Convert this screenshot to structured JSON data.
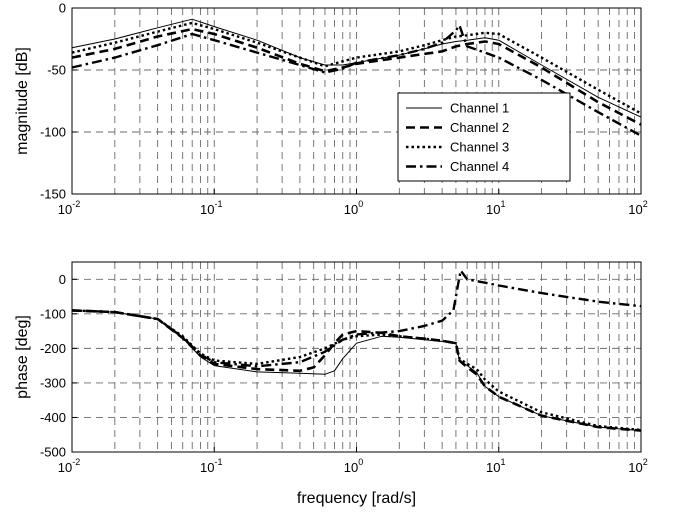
{
  "chart_data": [
    {
      "type": "line",
      "xscale": "log",
      "xlim": [
        0.01,
        100
      ],
      "ylim": [
        -150,
        0
      ],
      "ylabel": "magnitude [dB]",
      "xlabel": "",
      "grid": true,
      "legend_position": "right-middle",
      "x_ticks": [
        {
          "base": "10",
          "exp": "-2"
        },
        {
          "base": "10",
          "exp": "-1"
        },
        {
          "base": "10",
          "exp": "0"
        },
        {
          "base": "10",
          "exp": "1"
        },
        {
          "base": "10",
          "exp": "2"
        }
      ],
      "y_ticks": [
        "0",
        "-50",
        "-100",
        "-150"
      ],
      "series": [
        {
          "name": "Channel 1",
          "style": "solid-thin",
          "points": [
            [
              0.01,
              -32
            ],
            [
              0.02,
              -25
            ],
            [
              0.04,
              -16
            ],
            [
              0.07,
              -9
            ],
            [
              0.1,
              -15
            ],
            [
              0.2,
              -26
            ],
            [
              0.4,
              -40
            ],
            [
              0.6,
              -46
            ],
            [
              0.8,
              -46
            ],
            [
              1,
              -44
            ],
            [
              2,
              -38
            ],
            [
              3,
              -33
            ],
            [
              4,
              -29
            ],
            [
              5,
              -27
            ],
            [
              6,
              -26
            ],
            [
              8,
              -24
            ],
            [
              10,
              -26
            ],
            [
              20,
              -46
            ],
            [
              50,
              -72
            ],
            [
              100,
              -88
            ]
          ]
        },
        {
          "name": "Channel 2",
          "style": "dashed",
          "points": [
            [
              0.01,
              -40
            ],
            [
              0.02,
              -33
            ],
            [
              0.04,
              -23
            ],
            [
              0.07,
              -17
            ],
            [
              0.1,
              -21
            ],
            [
              0.2,
              -32
            ],
            [
              0.4,
              -45
            ],
            [
              0.6,
              -51
            ],
            [
              0.8,
              -48
            ],
            [
              1,
              -45
            ],
            [
              2,
              -40
            ],
            [
              3,
              -37
            ],
            [
              4,
              -35
            ],
            [
              5,
              -31
            ],
            [
              6,
              -29
            ],
            [
              8,
              -27
            ],
            [
              10,
              -29
            ],
            [
              20,
              -48
            ],
            [
              50,
              -76
            ],
            [
              100,
              -94
            ]
          ]
        },
        {
          "name": "Channel 3",
          "style": "dotted",
          "points": [
            [
              0.01,
              -36
            ],
            [
              0.02,
              -28
            ],
            [
              0.04,
              -19
            ],
            [
              0.07,
              -12
            ],
            [
              0.1,
              -17
            ],
            [
              0.2,
              -28
            ],
            [
              0.4,
              -40
            ],
            [
              0.6,
              -47
            ],
            [
              0.8,
              -43
            ],
            [
              1,
              -40
            ],
            [
              2,
              -35
            ],
            [
              3,
              -30
            ],
            [
              4,
              -26
            ],
            [
              5,
              -23
            ],
            [
              6,
              -22
            ],
            [
              8,
              -20
            ],
            [
              10,
              -21
            ],
            [
              20,
              -40
            ],
            [
              50,
              -66
            ],
            [
              100,
              -85
            ]
          ]
        },
        {
          "name": "Channel 4",
          "style": "dash-dot",
          "points": [
            [
              0.01,
              -48
            ],
            [
              0.02,
              -40
            ],
            [
              0.04,
              -30
            ],
            [
              0.07,
              -21
            ],
            [
              0.1,
              -26
            ],
            [
              0.2,
              -36
            ],
            [
              0.4,
              -46
            ],
            [
              0.6,
              -52
            ],
            [
              0.8,
              -49
            ],
            [
              1,
              -44
            ],
            [
              2,
              -38
            ],
            [
              3,
              -33
            ],
            [
              4,
              -28
            ],
            [
              5,
              -18
            ],
            [
              5.3,
              -14
            ],
            [
              5.6,
              -22
            ],
            [
              6,
              -31
            ],
            [
              8,
              -36
            ],
            [
              10,
              -40
            ],
            [
              20,
              -58
            ],
            [
              50,
              -84
            ],
            [
              100,
              -103
            ]
          ]
        }
      ]
    },
    {
      "type": "line",
      "xscale": "log",
      "xlim": [
        0.01,
        100
      ],
      "ylim": [
        -500,
        50
      ],
      "ylabel": "phase [deg]",
      "xlabel": "frequency [rad/s]",
      "grid": true,
      "x_ticks": [
        {
          "base": "10",
          "exp": "-2"
        },
        {
          "base": "10",
          "exp": "-1"
        },
        {
          "base": "10",
          "exp": "0"
        },
        {
          "base": "10",
          "exp": "1"
        },
        {
          "base": "10",
          "exp": "2"
        }
      ],
      "y_ticks": [
        "0",
        "-100",
        "-200",
        "-300",
        "-400",
        "-500"
      ],
      "series": [
        {
          "name": "Channel 1",
          "style": "solid-thin",
          "points": [
            [
              0.01,
              -90
            ],
            [
              0.02,
              -95
            ],
            [
              0.04,
              -115
            ],
            [
              0.06,
              -170
            ],
            [
              0.08,
              -225
            ],
            [
              0.1,
              -250
            ],
            [
              0.2,
              -268
            ],
            [
              0.4,
              -272
            ],
            [
              0.6,
              -275
            ],
            [
              0.7,
              -265
            ],
            [
              0.8,
              -230
            ],
            [
              1,
              -185
            ],
            [
              1.5,
              -165
            ],
            [
              2,
              -168
            ],
            [
              3,
              -175
            ],
            [
              4,
              -180
            ],
            [
              5,
              -185
            ],
            [
              5.3,
              -235
            ],
            [
              6,
              -250
            ],
            [
              7,
              -270
            ],
            [
              8,
              -310
            ],
            [
              10,
              -340
            ],
            [
              20,
              -395
            ],
            [
              50,
              -428
            ],
            [
              100,
              -438
            ]
          ]
        },
        {
          "name": "Channel 2",
          "style": "dashed",
          "points": [
            [
              0.01,
              -90
            ],
            [
              0.02,
              -95
            ],
            [
              0.04,
              -115
            ],
            [
              0.06,
              -170
            ],
            [
              0.08,
              -220
            ],
            [
              0.1,
              -245
            ],
            [
              0.2,
              -260
            ],
            [
              0.4,
              -265
            ],
            [
              0.5,
              -255
            ],
            [
              0.6,
              -220
            ],
            [
              0.7,
              -185
            ],
            [
              0.8,
              -160
            ],
            [
              1,
              -150
            ],
            [
              1.5,
              -155
            ],
            [
              2,
              -165
            ],
            [
              3,
              -172
            ],
            [
              4,
              -178
            ],
            [
              5,
              -185
            ],
            [
              5.3,
              -235
            ],
            [
              6,
              -255
            ],
            [
              7,
              -275
            ],
            [
              8,
              -310
            ],
            [
              10,
              -340
            ],
            [
              20,
              -395
            ],
            [
              50,
              -428
            ],
            [
              100,
              -438
            ]
          ]
        },
        {
          "name": "Channel 3",
          "style": "dotted",
          "points": [
            [
              0.01,
              -90
            ],
            [
              0.02,
              -95
            ],
            [
              0.04,
              -115
            ],
            [
              0.06,
              -165
            ],
            [
              0.08,
              -215
            ],
            [
              0.1,
              -235
            ],
            [
              0.2,
              -245
            ],
            [
              0.4,
              -225
            ],
            [
              0.6,
              -200
            ],
            [
              0.8,
              -175
            ],
            [
              1,
              -165
            ],
            [
              1.5,
              -160
            ],
            [
              2,
              -165
            ],
            [
              3,
              -172
            ],
            [
              4,
              -178
            ],
            [
              5,
              -185
            ],
            [
              5.3,
              -230
            ],
            [
              6,
              -245
            ],
            [
              7,
              -260
            ],
            [
              8,
              -290
            ],
            [
              10,
              -325
            ],
            [
              20,
              -385
            ],
            [
              50,
              -425
            ],
            [
              100,
              -436
            ]
          ]
        },
        {
          "name": "Channel 4",
          "style": "dash-dot",
          "points": [
            [
              0.01,
              -90
            ],
            [
              0.02,
              -95
            ],
            [
              0.04,
              -115
            ],
            [
              0.06,
              -168
            ],
            [
              0.08,
              -218
            ],
            [
              0.1,
              -240
            ],
            [
              0.2,
              -252
            ],
            [
              0.4,
              -240
            ],
            [
              0.6,
              -210
            ],
            [
              0.8,
              -175
            ],
            [
              1,
              -160
            ],
            [
              2,
              -150
            ],
            [
              3,
              -135
            ],
            [
              4,
              -120
            ],
            [
              4.8,
              -90
            ],
            [
              5.2,
              -10
            ],
            [
              5.4,
              25
            ],
            [
              6,
              0
            ],
            [
              8,
              -10
            ],
            [
              10,
              -18
            ],
            [
              20,
              -40
            ],
            [
              50,
              -65
            ],
            [
              100,
              -78
            ]
          ]
        }
      ]
    }
  ]
}
